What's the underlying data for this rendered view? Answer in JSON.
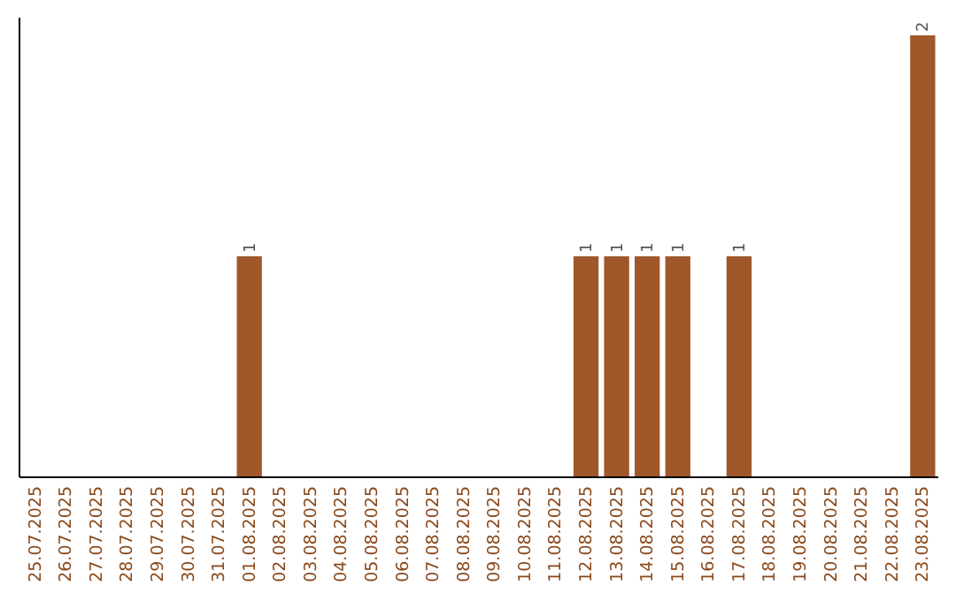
{
  "chart_data": {
    "type": "bar",
    "categories": [
      "25.07.2025",
      "26.07.2025",
      "27.07.2025",
      "28.07.2025",
      "29.07.2025",
      "30.07.2025",
      "31.07.2025",
      "01.08.2025",
      "02.08.2025",
      "03.08.2025",
      "04.08.2025",
      "05.08.2025",
      "06.08.2025",
      "07.08.2025",
      "08.08.2025",
      "09.08.2025",
      "10.08.2025",
      "11.08.2025",
      "12.08.2025",
      "13.08.2025",
      "14.08.2025",
      "15.08.2025",
      "16.08.2025",
      "17.08.2025",
      "18.08.2025",
      "19.08.2025",
      "20.08.2025",
      "21.08.2025",
      "22.08.2025",
      "23.08.2025"
    ],
    "values": [
      0,
      0,
      0,
      0,
      0,
      0,
      0,
      1,
      0,
      0,
      0,
      0,
      0,
      0,
      0,
      0,
      0,
      0,
      1,
      1,
      1,
      1,
      0,
      1,
      0,
      0,
      0,
      0,
      0,
      2
    ],
    "value_labels": [
      null,
      null,
      null,
      null,
      null,
      null,
      null,
      "1",
      null,
      null,
      null,
      null,
      null,
      null,
      null,
      null,
      null,
      null,
      "1",
      "1",
      "1",
      "1",
      null,
      "1",
      null,
      null,
      null,
      null,
      null,
      "2"
    ],
    "color": "#a0582a",
    "tick_labels": "x"
  }
}
